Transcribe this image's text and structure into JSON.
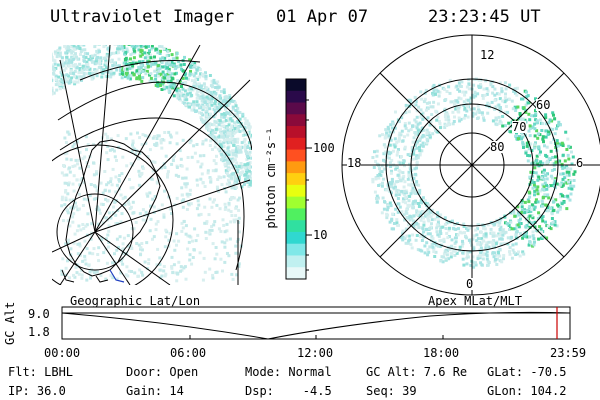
{
  "header": {
    "instrument": "Ultraviolet Imager",
    "date": "01 Apr 07",
    "time": "23:23:45 UT"
  },
  "colorbar": {
    "unit_label": "photon cm⁻²s⁻¹",
    "ticks": [
      "100",
      "10"
    ],
    "colors": [
      "#0a0a2a",
      "#2a0a4a",
      "#5a0a4a",
      "#8a0a3a",
      "#b8102a",
      "#e02020",
      "#ff5020",
      "#ff9a10",
      "#ffd010",
      "#e8ff10",
      "#a0ff30",
      "#50f060",
      "#30e0a0",
      "#30d8d0",
      "#80e8e8",
      "#c0f0f0",
      "#e8f8f8"
    ]
  },
  "geo_panel": {
    "label": "Geographic Lat/Lon"
  },
  "polar_panel": {
    "label": "Apex MLat/MLT",
    "lat_labels": [
      "60",
      "70",
      "80"
    ],
    "mlt_labels": {
      "top": "12",
      "left": "18",
      "right": "6",
      "bottom": "0"
    }
  },
  "altitude_plot": {
    "ylabel": "GC Alt",
    "yticks": [
      "9.0",
      "1.8"
    ],
    "xticks": [
      "00:00",
      "06:00",
      "12:00",
      "18:00",
      "23:59"
    ],
    "marker_color": "#cc0000"
  },
  "info": {
    "filter": "Flt: LBHL",
    "ip": "IP: 36.0",
    "door": "Door: Open",
    "gain": "Gain: 14",
    "mode": "Mode: Normal",
    "dsp": "Dsp:    -4.5",
    "gc_alt": "GC Alt: 7.6 Re",
    "seq": "Seq: 39",
    "glat": "GLat: -70.5",
    "glon": "GLon: 104.2"
  }
}
